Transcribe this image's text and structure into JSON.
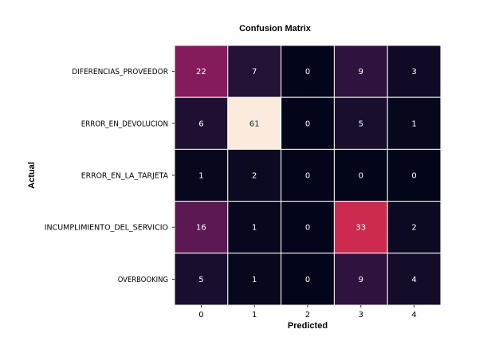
{
  "chart_data": {
    "type": "heatmap",
    "title": "Confusion Matrix",
    "xlabel": "Predicted",
    "ylabel": "Actual",
    "x_categories": [
      "0",
      "1",
      "2",
      "3",
      "4"
    ],
    "y_categories": [
      "DIFERENCIAS_PROVEEDOR",
      "ERROR_EN_DEVOLUCION",
      "ERROR_EN_LA_TARJETA",
      "INCUMPLIMIENTO_DEL_SERVICIO",
      "OVERBOOKING"
    ],
    "values": [
      [
        22,
        7,
        0,
        9,
        3
      ],
      [
        6,
        61,
        0,
        5,
        1
      ],
      [
        1,
        2,
        0,
        0,
        0
      ],
      [
        16,
        1,
        0,
        33,
        2
      ],
      [
        5,
        1,
        0,
        9,
        4
      ]
    ],
    "colormap": "rocket",
    "value_range": [
      0,
      61
    ],
    "colorbar": false,
    "grid": false,
    "cell_border_color": "#ffffff"
  }
}
